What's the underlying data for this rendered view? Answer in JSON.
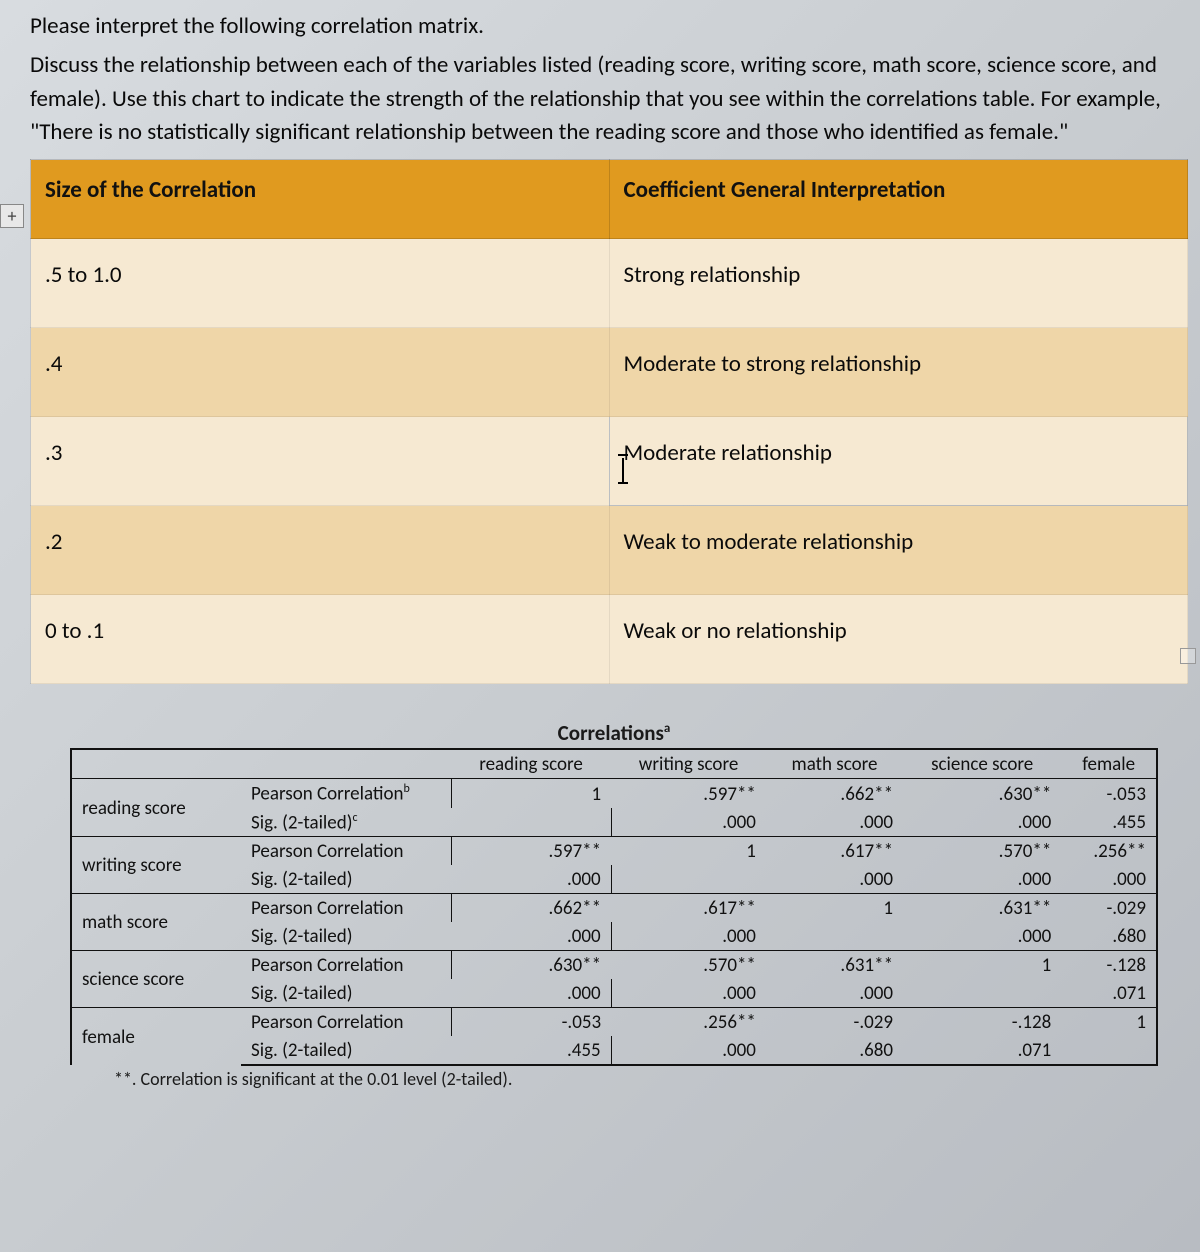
{
  "intro": {
    "line1": "Please interpret the following correlation matrix.",
    "paragraph": "Discuss the relationship between each of the variables listed (reading score, writing score, math score, science score, and female). Use this chart to indicate the strength of the relationship that you see within the correlations table. For example, \"There is no statistically significant relationship between the reading score and those who identified as female.\""
  },
  "expand_symbol": "+",
  "interp_table": {
    "header_left": "Size of the Correlation",
    "header_right": "Coefficient General Interpretation",
    "rows": [
      {
        "size": ".5 to 1.0",
        "desc": "Strong relationship"
      },
      {
        "size": ".4",
        "desc": "Moderate to strong relationship"
      },
      {
        "size": ".3",
        "desc": "Moderate relationship",
        "cursor": true
      },
      {
        "size": ".2",
        "desc": "Weak to moderate relationship"
      },
      {
        "size": "0 to .1",
        "desc": "Weak or no relationship"
      }
    ],
    "header_bg": "#e09a1f",
    "band_light": "#f6e9d2",
    "band_dark": "#efd6a8"
  },
  "correlations": {
    "title": "Correlations",
    "title_sup": "a",
    "footnote": "**. Correlation is significant at the 0.01 level (2-tailed).",
    "col_headers": [
      "reading score",
      "writing score",
      "math score",
      "science score",
      "female"
    ],
    "stat_labels": {
      "pearson": "Pearson Correlation",
      "sig": "Sig. (2-tailed)"
    },
    "first_pearson_sup": "b",
    "first_sig_sup": "c",
    "variables": [
      {
        "name": "reading score",
        "pearson": [
          "1",
          ".597**",
          ".662**",
          ".630**",
          "-.053"
        ],
        "sig": [
          "",
          ".000",
          ".000",
          ".000",
          ".455"
        ]
      },
      {
        "name": "writing score",
        "pearson": [
          ".597**",
          "1",
          ".617**",
          ".570**",
          ".256**"
        ],
        "sig": [
          ".000",
          "",
          ".000",
          ".000",
          ".000"
        ]
      },
      {
        "name": "math score",
        "pearson": [
          ".662**",
          ".617**",
          "1",
          ".631**",
          "-.029"
        ],
        "sig": [
          ".000",
          ".000",
          "",
          ".000",
          ".680"
        ]
      },
      {
        "name": "science score",
        "pearson": [
          ".630**",
          ".570**",
          ".631**",
          "1",
          "-.128"
        ],
        "sig": [
          ".000",
          ".000",
          ".000",
          "",
          ".071"
        ]
      },
      {
        "name": "female",
        "pearson": [
          "-.053",
          ".256**",
          "-.029",
          "-.128",
          "1"
        ],
        "sig": [
          ".455",
          ".000",
          ".680",
          ".071",
          ""
        ]
      }
    ]
  }
}
